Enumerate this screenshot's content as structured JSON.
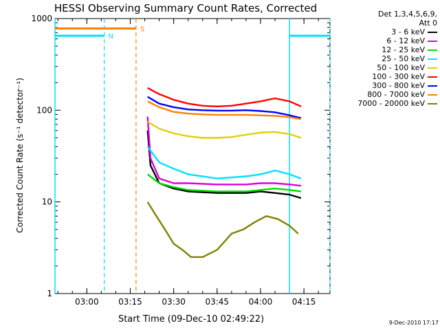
{
  "chart_data": {
    "type": "line",
    "title": "HESSI Observing Summary Count Rates, Corrected",
    "xlabel": "Start Time (09-Dec-10 02:49:22)",
    "ylabel": "Corrected Count Rate (s⁻¹ detector⁻¹)",
    "y_scale": "log",
    "ylim": [
      1,
      1000
    ],
    "xlim": [
      "02:49",
      "04:24"
    ],
    "x_ticks": [
      "03:00",
      "03:15",
      "03:30",
      "03:45",
      "04:00",
      "04:15"
    ],
    "y_ticks": [
      "1",
      "10",
      "100",
      "1000"
    ],
    "legend_header": [
      "Det 1,3,4,5,6,9,",
      "Att 0"
    ],
    "legend_position": "outside-right",
    "series": [
      {
        "name": "3 - 6 keV",
        "color": "#000000",
        "x": [
          "03:21",
          "03:22",
          "03:25",
          "03:30",
          "03:35",
          "03:45",
          "03:55",
          "04:00",
          "04:05",
          "04:10",
          "04:14"
        ],
        "y": [
          60,
          25,
          16,
          14,
          13,
          12.5,
          12.5,
          13,
          12.5,
          12,
          11
        ]
      },
      {
        "name": "6 - 12 keV",
        "color": "#dd00dd",
        "x": [
          "03:21",
          "03:22",
          "03:25",
          "03:30",
          "03:35",
          "03:45",
          "03:55",
          "04:00",
          "04:05",
          "04:10",
          "04:14"
        ],
        "y": [
          85,
          30,
          18,
          16,
          16,
          15.5,
          15.5,
          16,
          16,
          15.5,
          15
        ]
      },
      {
        "name": "12 - 25 keV",
        "color": "#00dd00",
        "x": [
          "03:21",
          "03:25",
          "03:30",
          "03:35",
          "03:45",
          "03:55",
          "04:00",
          "04:05",
          "04:10",
          "04:14"
        ],
        "y": [
          20,
          16,
          14.5,
          13.5,
          13,
          13,
          13.5,
          14,
          13.5,
          13
        ]
      },
      {
        "name": "25 - 50 keV",
        "color": "#00e0ff",
        "x": [
          "03:21",
          "03:25",
          "03:30",
          "03:35",
          "03:45",
          "03:55",
          "04:00",
          "04:05",
          "04:10",
          "04:14"
        ],
        "y": [
          40,
          27,
          23,
          20,
          18,
          19,
          20,
          22,
          20,
          18
        ]
      },
      {
        "name": "50 - 100 keV",
        "color": "#e0d000",
        "x": [
          "03:21",
          "03:25",
          "03:30",
          "03:35",
          "03:40",
          "03:45",
          "03:50",
          "03:55",
          "04:00",
          "04:05",
          "04:10",
          "04:14"
        ],
        "y": [
          75,
          63,
          56,
          52,
          50,
          50,
          51,
          54,
          57,
          58,
          55,
          50
        ]
      },
      {
        "name": "100 - 300 keV",
        "color": "#ff0000",
        "x": [
          "03:21",
          "03:25",
          "03:30",
          "03:35",
          "03:40",
          "03:45",
          "03:50",
          "03:55",
          "04:00",
          "04:05",
          "04:10",
          "04:14"
        ],
        "y": [
          175,
          150,
          130,
          118,
          112,
          110,
          112,
          118,
          125,
          135,
          125,
          110
        ]
      },
      {
        "name": "300 - 800 keV",
        "color": "#0000ff",
        "x": [
          "03:21",
          "03:25",
          "03:30",
          "03:35",
          "03:40",
          "03:45",
          "03:50",
          "03:55",
          "04:00",
          "04:05",
          "04:10",
          "04:14"
        ],
        "y": [
          140,
          118,
          108,
          102,
          100,
          99,
          99,
          100,
          98,
          95,
          88,
          82
        ]
      },
      {
        "name": "800 - 7000 keV",
        "color": "#ff8000",
        "x": [
          "03:21",
          "03:25",
          "03:30",
          "03:35",
          "03:40",
          "03:45",
          "03:50",
          "03:55",
          "04:00",
          "04:05",
          "04:10",
          "04:14"
        ],
        "y": [
          125,
          108,
          96,
          92,
          90,
          89,
          89,
          89,
          88,
          87,
          84,
          80
        ]
      },
      {
        "name": "7000 - 20000 keV",
        "color": "#808000",
        "x": [
          "03:21",
          "03:24",
          "03:27",
          "03:30",
          "03:33",
          "03:36",
          "03:40",
          "03:45",
          "03:50",
          "03:54",
          "03:58",
          "04:02",
          "04:06",
          "04:10",
          "04:13"
        ],
        "y": [
          10,
          7,
          5,
          3.5,
          3,
          2.5,
          2.5,
          3,
          4.5,
          5,
          6,
          7,
          6.5,
          5.5,
          4.5
        ]
      }
    ],
    "attenuator_bars": [
      {
        "label": "N",
        "color": "#00e0ff",
        "x_start": "02:49",
        "x_end": "03:06",
        "y": 650
      },
      {
        "label": "S",
        "color": "#ff8000",
        "x_start": "02:49",
        "x_end": "03:17",
        "y": 780
      }
    ],
    "night_periods": [
      {
        "color": "#00e0ff",
        "x_start": "02:49",
        "x_end": "03:06"
      },
      {
        "color": "#00e0ff",
        "x_start": "04:10",
        "x_end": "04:24"
      }
    ],
    "saa_period": {
      "color": "#ff8000",
      "x_end": "03:17"
    },
    "right_segment": {
      "color": "#00e0ff",
      "x_start": "04:10",
      "x_end": "04:24",
      "y": 650
    },
    "timestamp": "9-Dec-2010 17:17"
  }
}
